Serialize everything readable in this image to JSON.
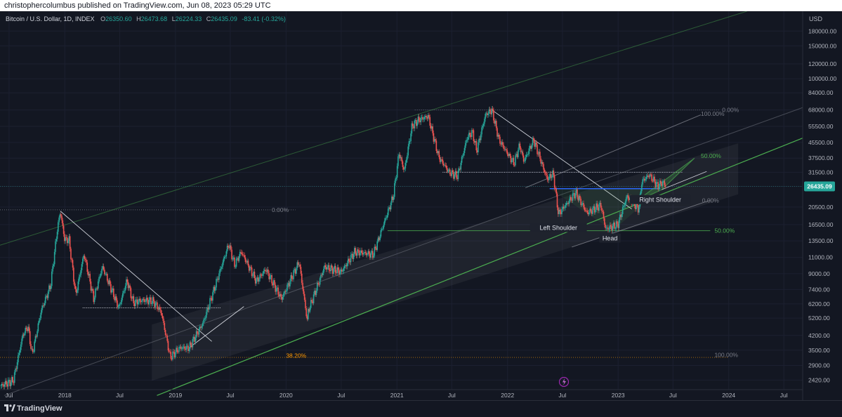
{
  "header": {
    "publisher_line": "christophercolumbus published on TradingView.com, Jun 08, 2023 05:29 UTC"
  },
  "legend": {
    "symbol": "Bitcoin / U.S. Dollar, 1D, INDEX",
    "open_label": "O",
    "open": "26350.60",
    "high_label": "H",
    "high": "26473.68",
    "low_label": "L",
    "low": "26224.33",
    "close_label": "C",
    "close": "26435.09",
    "change": "-83.41 (-0.32%)"
  },
  "currency": "USD",
  "footer": {
    "brand": "TradingView"
  },
  "colors": {
    "background": "#131722",
    "up": "#26a69a",
    "down": "#ef5350",
    "fib_green": "#4caf50",
    "fib_orange": "#ff9800",
    "neckline_blue": "#2962ff",
    "price_badge": "#26a69a"
  },
  "chart_data": {
    "type": "candlestick",
    "title": "",
    "y_scale": "log",
    "ylim": [
      2150,
      230000
    ],
    "x_range": [
      "2017-06-01",
      "2024-09-01"
    ],
    "y_ticks": [
      180000,
      150000,
      120000,
      100000,
      84000,
      68000,
      55500,
      45500,
      37500,
      31500,
      26435.09,
      20500,
      16500,
      13500,
      11000,
      9000,
      7400,
      6200,
      5200,
      4200,
      3500,
      2900,
      2420
    ],
    "y_tick_labels": [
      "180000.00",
      "150000.00",
      "120000.00",
      "100000.00",
      "84000.00",
      "68000.00",
      "55500.00",
      "45500.00",
      "37500.00",
      "31500.00",
      "26435.09",
      "20500.00",
      "16500.00",
      "13500.00",
      "11000.00",
      "9000.00",
      "7400.00",
      "6200.00",
      "5200.00",
      "4200.00",
      "3500.00",
      "2900.00",
      "2420.00"
    ],
    "x_ticks": [
      {
        "date": "2017-07-01",
        "label": "Jul"
      },
      {
        "date": "2018-01-01",
        "label": "2018"
      },
      {
        "date": "2018-07-01",
        "label": "Jul"
      },
      {
        "date": "2019-01-01",
        "label": "2019"
      },
      {
        "date": "2019-07-01",
        "label": "Jul"
      },
      {
        "date": "2020-01-01",
        "label": "2020"
      },
      {
        "date": "2020-07-01",
        "label": "Jul"
      },
      {
        "date": "2021-01-01",
        "label": "2021"
      },
      {
        "date": "2021-07-01",
        "label": "Jul"
      },
      {
        "date": "2022-01-01",
        "label": "2022"
      },
      {
        "date": "2022-07-01",
        "label": "Jul"
      },
      {
        "date": "2023-01-01",
        "label": "2023"
      },
      {
        "date": "2023-07-01",
        "label": "Jul"
      },
      {
        "date": "2024-01-01",
        "label": "2024"
      },
      {
        "date": "2024-07-01",
        "label": "Jul"
      }
    ],
    "last_price": 26435.09,
    "price_path": [
      [
        "2017-06-01",
        2250
      ],
      [
        "2017-07-15",
        2400
      ],
      [
        "2017-08-15",
        4200
      ],
      [
        "2017-09-01",
        4700
      ],
      [
        "2017-09-15",
        3300
      ],
      [
        "2017-10-15",
        5700
      ],
      [
        "2017-11-15",
        7800
      ],
      [
        "2017-12-07",
        15500
      ],
      [
        "2017-12-17",
        19500
      ],
      [
        "2017-12-31",
        13800
      ],
      [
        "2018-01-15",
        13600
      ],
      [
        "2018-02-06",
        6900
      ],
      [
        "2018-03-05",
        11500
      ],
      [
        "2018-04-06",
        6600
      ],
      [
        "2018-05-05",
        9800
      ],
      [
        "2018-06-28",
        5900
      ],
      [
        "2018-07-25",
        8300
      ],
      [
        "2018-08-15",
        6300
      ],
      [
        "2018-09-15",
        6500
      ],
      [
        "2018-10-20",
        6400
      ],
      [
        "2018-11-15",
        5600
      ],
      [
        "2018-12-15",
        3200
      ],
      [
        "2019-01-15",
        3600
      ],
      [
        "2019-02-15",
        3600
      ],
      [
        "2019-04-02",
        4900
      ],
      [
        "2019-05-15",
        8000
      ],
      [
        "2019-06-26",
        13000
      ],
      [
        "2019-07-15",
        10000
      ],
      [
        "2019-08-06",
        11800
      ],
      [
        "2019-09-25",
        8200
      ],
      [
        "2019-10-26",
        9500
      ],
      [
        "2019-12-17",
        6600
      ],
      [
        "2020-02-13",
        10400
      ],
      [
        "2020-03-12",
        4900
      ],
      [
        "2020-03-13",
        5600
      ],
      [
        "2020-05-07",
        9800
      ],
      [
        "2020-07-01",
        9200
      ],
      [
        "2020-08-15",
        11800
      ],
      [
        "2020-10-15",
        11400
      ],
      [
        "2020-11-15",
        16000
      ],
      [
        "2020-12-20",
        23500
      ],
      [
        "2021-01-08",
        40000
      ],
      [
        "2021-01-25",
        32000
      ],
      [
        "2021-02-20",
        56000
      ],
      [
        "2021-03-13",
        60000
      ],
      [
        "2021-04-14",
        63000
      ],
      [
        "2021-05-19",
        38000
      ],
      [
        "2021-06-22",
        31500
      ],
      [
        "2021-07-20",
        30000
      ],
      [
        "2021-08-20",
        48000
      ],
      [
        "2021-09-07",
        52000
      ],
      [
        "2021-09-21",
        41000
      ],
      [
        "2021-10-20",
        64000
      ],
      [
        "2021-11-10",
        68000
      ],
      [
        "2021-12-04",
        47000
      ],
      [
        "2022-01-22",
        35000
      ],
      [
        "2022-02-10",
        44000
      ],
      [
        "2022-02-24",
        36000
      ],
      [
        "2022-03-28",
        47000
      ],
      [
        "2022-05-12",
        29000
      ],
      [
        "2022-06-01",
        31000
      ],
      [
        "2022-06-18",
        18800
      ],
      [
        "2022-08-14",
        24500
      ],
      [
        "2022-09-20",
        19000
      ],
      [
        "2022-11-05",
        21000
      ],
      [
        "2022-11-21",
        15600
      ],
      [
        "2022-12-31",
        16500
      ],
      [
        "2023-01-30",
        23500
      ],
      [
        "2023-03-10",
        20000
      ],
      [
        "2023-03-20",
        28000
      ],
      [
        "2023-04-14",
        30500
      ],
      [
        "2023-05-12",
        26500
      ],
      [
        "2023-05-29",
        28000
      ],
      [
        "2023-06-08",
        26435
      ]
    ],
    "annotations": {
      "pattern_labels": [
        {
          "text": "Left Shoulder",
          "date": "2022-06-18",
          "price": 15700
        },
        {
          "text": "Head",
          "date": "2022-12-05",
          "price": 13800
        },
        {
          "text": "Right Shoulder",
          "date": "2023-05-20",
          "price": 22200
        }
      ],
      "fib_labels": [
        {
          "text": "0.00%",
          "date": "2023-12-10",
          "price": 68000,
          "tone": "grey"
        },
        {
          "text": "100.00%",
          "date": "2023-10-01",
          "price": 65000,
          "tone": "grey"
        },
        {
          "text": "50.00%",
          "date": "2023-10-01",
          "price": 38500,
          "tone": "green"
        },
        {
          "text": "0.00%",
          "date": "2023-10-05",
          "price": 22200,
          "tone": "grey"
        },
        {
          "text": "50.00%",
          "date": "2023-11-15",
          "price": 15300,
          "tone": "green"
        },
        {
          "text": "0.00%",
          "date": "2019-11-15",
          "price": 19800,
          "tone": "grey"
        },
        {
          "text": "38.20%",
          "date": "2020-01-01",
          "price": 3270,
          "tone": "orange"
        },
        {
          "text": "100.00%",
          "date": "2023-11-15",
          "price": 3300,
          "tone": "grey"
        }
      ]
    }
  }
}
